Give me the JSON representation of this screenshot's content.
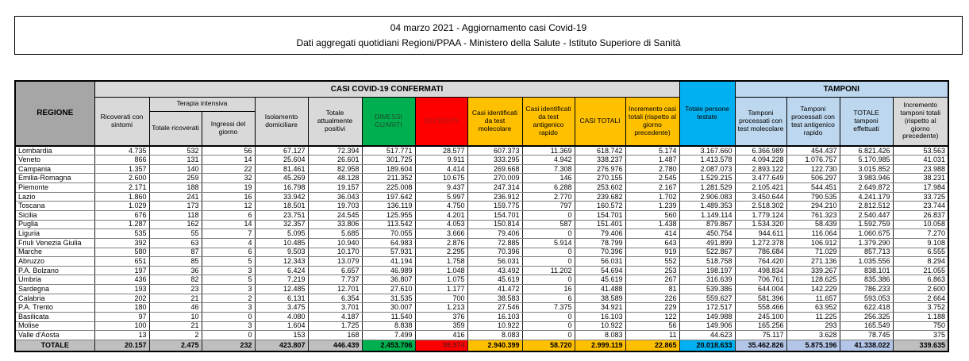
{
  "title": {
    "line1": "04 marzo 2021 - Aggiornamento casi Covid-19",
    "line2": "Dati aggregati quotidiani Regioni/PPAA - Ministero della Salute - Istituto Superiore di Sanità"
  },
  "table": {
    "bands": {
      "confirmed": "CASI COVID-19 CONFERMATI",
      "tamponi": "TAMPONI"
    },
    "headers": {
      "regione": "REGIONE",
      "ricoverati": "Ricoverati con sintomi",
      "terapia": "Terapia intensiva",
      "terapia_totale": "Totale ricoverati",
      "terapia_ingressi": "Ingressi del giorno",
      "isolamento": "Isolamento domiciliare",
      "positivi": "Totale attualmente positivi",
      "dimessi": "DIMESSI GUARITI",
      "deceduti": "DECEDUTI",
      "casi_molecolare": "Casi identificati da test molecolare",
      "casi_antigenico": "Casi identificati da test antigenico rapido",
      "casi_totali": "CASI TOTALI",
      "incremento_casi": "Incremento casi totali (rispetto al giorno precedente)",
      "persone_testate": "Totale persone testate",
      "tamponi_molecolare": "Tamponi processati con test molecolare",
      "tamponi_antigenico": "Tamponi processati con test antigenico rapido",
      "tamponi_totale": "TOTALE tamponi effettuati",
      "incremento_tamponi": "Incremento tamponi totali (rispetto al giorno precedente)"
    },
    "colors": {
      "header_gray": "#a6a6a6",
      "band_gray": "#d9d9d9",
      "green": "#00b050",
      "red": "#ff0000",
      "gold": "#ffc000",
      "cyan": "#00b0f0",
      "light_blue": "#bdd7ee",
      "total_blue": "#b4c6e7",
      "total_gray": "#bfbfbf"
    },
    "rows": [
      {
        "name": "Lombardia",
        "values": [
          "4.735",
          "532",
          "56",
          "67.127",
          "72.394",
          "517.771",
          "28.577",
          "607.373",
          "11.369",
          "618.742",
          "5.174",
          "3.167.660",
          "6.366.989",
          "454.437",
          "6.821.426",
          "53.563"
        ]
      },
      {
        "name": "Veneto",
        "values": [
          "866",
          "131",
          "14",
          "25.604",
          "26.601",
          "301.725",
          "9.911",
          "333.295",
          "4.942",
          "338.237",
          "1.487",
          "1.413.578",
          "4.094.228",
          "1.076.757",
          "5.170.985",
          "41.031"
        ]
      },
      {
        "name": "Campania",
        "values": [
          "1.357",
          "140",
          "22",
          "81.461",
          "82.958",
          "189.604",
          "4.414",
          "269.668",
          "7.308",
          "276.976",
          "2.780",
          "2.087.073",
          "2.893.122",
          "122.730",
          "3.015.852",
          "23.988"
        ]
      },
      {
        "name": "Emilia-Romagna",
        "values": [
          "2.600",
          "259",
          "32",
          "45.269",
          "48.128",
          "211.352",
          "10.675",
          "270.009",
          "146",
          "270.155",
          "2.545",
          "1.529.215",
          "3.477.649",
          "506.297",
          "3.983.946",
          "38.231"
        ]
      },
      {
        "name": "Piemonte",
        "values": [
          "2.171",
          "188",
          "19",
          "16.798",
          "19.157",
          "225.008",
          "9.437",
          "247.314",
          "6.288",
          "253.602",
          "2.167",
          "1.281.529",
          "2.105.421",
          "544.451",
          "2.649.872",
          "17.984"
        ]
      },
      {
        "name": "Lazio",
        "values": [
          "1.860",
          "241",
          "16",
          "33.942",
          "36.043",
          "197.642",
          "5.997",
          "236.912",
          "2.770",
          "239.682",
          "1.702",
          "2.906.083",
          "3.450.644",
          "790.535",
          "4.241.179",
          "33.725"
        ]
      },
      {
        "name": "Toscana",
        "values": [
          "1.029",
          "173",
          "12",
          "18.501",
          "19.703",
          "136.119",
          "4.750",
          "159.775",
          "797",
          "160.572",
          "1.239",
          "1.489.353",
          "2.518.302",
          "294.210",
          "2.812.512",
          "23.744"
        ]
      },
      {
        "name": "Sicilia",
        "values": [
          "676",
          "118",
          "6",
          "23.751",
          "24.545",
          "125.955",
          "4.201",
          "154.701",
          "0",
          "154.701",
          "560",
          "1.149.114",
          "1.779.124",
          "761.323",
          "2.540.447",
          "26.837"
        ]
      },
      {
        "name": "Puglia",
        "values": [
          "1.287",
          "162",
          "14",
          "32.357",
          "33.806",
          "113.542",
          "4.053",
          "150.814",
          "587",
          "151.401",
          "1.438",
          "879.867",
          "1.534.320",
          "58.439",
          "1.592.759",
          "10.058"
        ]
      },
      {
        "name": "Liguria",
        "values": [
          "535",
          "55",
          "7",
          "5.095",
          "5.685",
          "70.055",
          "3.666",
          "79.406",
          "0",
          "79.406",
          "414",
          "450.754",
          "944.611",
          "116.064",
          "1.060.675",
          "7.270"
        ]
      },
      {
        "name": "Friuli Venezia Giulia",
        "values": [
          "392",
          "63",
          "4",
          "10.485",
          "10.940",
          "64.983",
          "2.876",
          "72.885",
          "5.914",
          "78.799",
          "643",
          "491.899",
          "1.272.378",
          "106.912",
          "1.379.290",
          "9.108"
        ]
      },
      {
        "name": "Marche",
        "values": [
          "580",
          "87",
          "6",
          "9.503",
          "10.170",
          "57.931",
          "2.295",
          "70.396",
          "0",
          "70.396",
          "919",
          "522.867",
          "786.684",
          "71.029",
          "857.713",
          "6.555"
        ]
      },
      {
        "name": "Abruzzo",
        "values": [
          "651",
          "85",
          "5",
          "12.343",
          "13.079",
          "41.194",
          "1.758",
          "56.031",
          "0",
          "56.031",
          "552",
          "518.758",
          "764.420",
          "271.136",
          "1.035.556",
          "8.294"
        ]
      },
      {
        "name": "P.A. Bolzano",
        "values": [
          "197",
          "36",
          "3",
          "6.424",
          "6.657",
          "46.989",
          "1.048",
          "43.492",
          "11.202",
          "54.694",
          "253",
          "198.197",
          "498.834",
          "339.267",
          "838.101",
          "21.055"
        ]
      },
      {
        "name": "Umbria",
        "values": [
          "436",
          "82",
          "5",
          "7.219",
          "7.737",
          "36.807",
          "1.075",
          "45.619",
          "0",
          "45.619",
          "267",
          "316.639",
          "706.761",
          "128.625",
          "835.386",
          "6.863"
        ]
      },
      {
        "name": "Sardegna",
        "values": [
          "193",
          "23",
          "3",
          "12.485",
          "12.701",
          "27.610",
          "1.177",
          "41.472",
          "16",
          "41.488",
          "81",
          "539.386",
          "644.004",
          "142.229",
          "786.233",
          "2.600"
        ]
      },
      {
        "name": "Calabria",
        "values": [
          "202",
          "21",
          "2",
          "6.131",
          "6.354",
          "31.535",
          "700",
          "38.583",
          "6",
          "38.589",
          "226",
          "559.627",
          "581.396",
          "11.657",
          "593.053",
          "2.664"
        ]
      },
      {
        "name": "P.A. Trento",
        "values": [
          "180",
          "46",
          "3",
          "3.475",
          "3.701",
          "30.007",
          "1.213",
          "27.546",
          "7.375",
          "34.921",
          "229",
          "172.517",
          "558.466",
          "63.952",
          "622.418",
          "3.752"
        ]
      },
      {
        "name": "Basilicata",
        "values": [
          "97",
          "10",
          "0",
          "4.080",
          "4.187",
          "11.540",
          "376",
          "16.103",
          "0",
          "16.103",
          "122",
          "149.988",
          "245.100",
          "11.225",
          "256.325",
          "1.188"
        ]
      },
      {
        "name": "Molise",
        "values": [
          "100",
          "21",
          "3",
          "1.604",
          "1.725",
          "8.838",
          "359",
          "10.922",
          "0",
          "10.922",
          "56",
          "149.906",
          "165.256",
          "293",
          "165.549",
          "750"
        ]
      },
      {
        "name": "Valle d'Aosta",
        "values": [
          "13",
          "2",
          "0",
          "153",
          "168",
          "7.499",
          "416",
          "8.083",
          "0",
          "8.083",
          "11",
          "44.623",
          "75.117",
          "3.628",
          "78.745",
          "375"
        ]
      }
    ],
    "total_row": {
      "name": "TOTALE",
      "values": [
        "20.157",
        "2.475",
        "232",
        "423.807",
        "446.439",
        "2.453.706",
        "98.974",
        "2.940.399",
        "58.720",
        "2.999.119",
        "22.865",
        "20.018.633",
        "35.462.826",
        "5.875.196",
        "41.338.022",
        "339.635"
      ]
    }
  }
}
